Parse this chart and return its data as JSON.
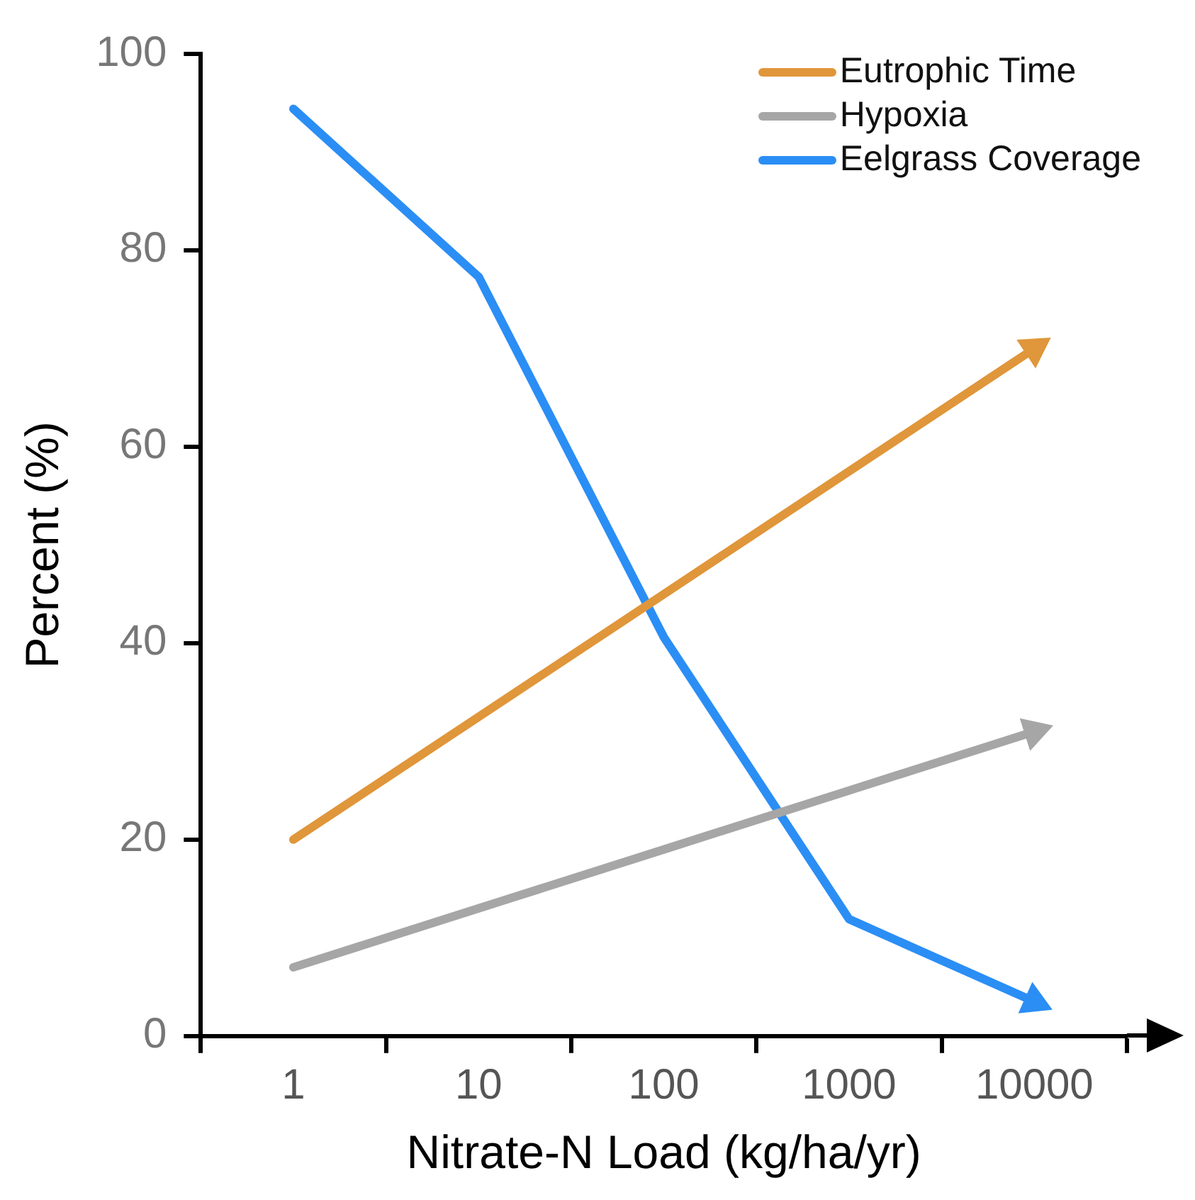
{
  "chart_data": {
    "type": "line",
    "xlabel": "Nitrate-N Load (kg/ha/yr)",
    "ylabel": "Percent (%)",
    "categories": [
      "1",
      "10",
      "100",
      "1000",
      "10000"
    ],
    "ylim": [
      0,
      100
    ],
    "yticks": [
      0,
      20,
      40,
      60,
      80,
      100
    ],
    "grid": false,
    "legend": "top right",
    "marker": "none",
    "line_style": "solid",
    "series": [
      {
        "name": "Eutrophic Time",
        "color": "#e0963a",
        "values": [
          20,
          32.5,
          45,
          57.5,
          70
        ]
      },
      {
        "name": "Hypoxia",
        "color": "#a6a6a6",
        "values": [
          7,
          13,
          19,
          25,
          31
        ]
      },
      {
        "name": "Eelgrass Coverage",
        "color": "#2b8ef5",
        "values": [
          94.4,
          77.3,
          40.6,
          11.9,
          3.5
        ]
      }
    ]
  }
}
